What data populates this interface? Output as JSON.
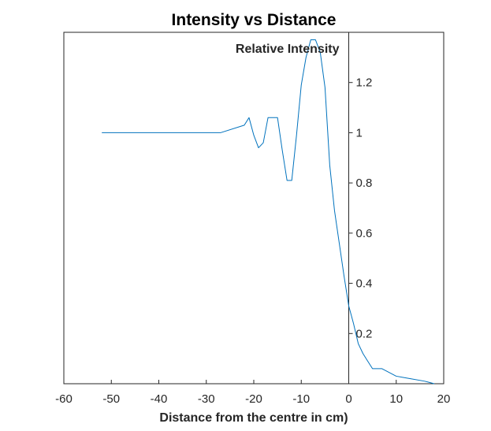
{
  "chart_data": {
    "type": "line",
    "title": "Intensity vs Distance",
    "xlabel": "Distance from the centre in cm)",
    "ylabel": "Relative Intensity",
    "xlim": [
      -60,
      20
    ],
    "ylim": [
      0,
      1.4
    ],
    "x_ticks": [
      -60,
      -50,
      -40,
      -30,
      -20,
      -10,
      0,
      10,
      20
    ],
    "y_ticks": [
      0.2,
      0.4,
      0.6,
      0.8,
      1,
      1.2
    ],
    "y_axis_location": "origin",
    "box": true,
    "grid": false,
    "line_color": "#0072BD",
    "series": [
      {
        "x": [
          -52,
          -27,
          -22,
          -21,
          -20,
          -19,
          -18,
          -17,
          -15,
          -14,
          -13,
          -12,
          -11,
          -10,
          -9,
          -8,
          -7,
          -6,
          -5,
          -4,
          -3,
          -2,
          -1,
          0,
          1,
          2,
          3,
          4,
          5,
          7,
          10,
          13,
          16,
          17,
          18
        ],
        "y": [
          1.0,
          1.0,
          1.03,
          1.06,
          0.99,
          0.94,
          0.96,
          1.06,
          1.06,
          0.93,
          0.81,
          0.81,
          0.99,
          1.19,
          1.3,
          1.37,
          1.37,
          1.32,
          1.18,
          0.87,
          0.69,
          0.56,
          0.43,
          0.31,
          0.24,
          0.16,
          0.12,
          0.09,
          0.06,
          0.06,
          0.03,
          0.02,
          0.01,
          0.005,
          0.0
        ]
      }
    ]
  }
}
